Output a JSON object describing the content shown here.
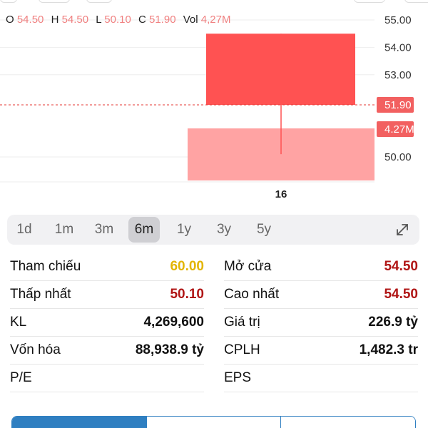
{
  "ohlc": {
    "o_label": "O",
    "o_value": "54.50",
    "h_label": "H",
    "h_value": "54.50",
    "l_label": "L",
    "l_value": "50.10",
    "c_label": "C",
    "c_value": "51.90",
    "vol_label": "Vol",
    "vol_value": "4,27M"
  },
  "chart_data": {
    "type": "candlestick",
    "categories": [
      "16"
    ],
    "candles": [
      {
        "x": "16",
        "open": 54.5,
        "high": 54.5,
        "low": 50.1,
        "close": 51.9
      }
    ],
    "volume": [
      {
        "x": "16",
        "value": 4.27
      }
    ],
    "y_ticks": [
      "55.00",
      "54.00",
      "53.00",
      "50.00"
    ],
    "ylim": [
      49.2,
      55.2
    ],
    "last_price_label": "51.90",
    "last_volume_label": "4.27M",
    "x_tick_label": "16",
    "colors": {
      "candle": "#ff5252",
      "volume": "#ffa3a3",
      "price_line": "#e53935",
      "tag": "#f26060"
    }
  },
  "periods": [
    {
      "label": "1d",
      "active": false
    },
    {
      "label": "1m",
      "active": false
    },
    {
      "label": "3m",
      "active": false
    },
    {
      "label": "6m",
      "active": true
    },
    {
      "label": "1y",
      "active": false
    },
    {
      "label": "3y",
      "active": false
    },
    {
      "label": "5y",
      "active": false
    }
  ],
  "stats": {
    "left": [
      {
        "label": "Tham chiếu",
        "value": "60.00",
        "color": "yellow"
      },
      {
        "label": "Thấp nhất",
        "value": "50.10",
        "color": "red"
      },
      {
        "label": "KL",
        "value": "4,269,600",
        "color": "dark"
      },
      {
        "label": "Vốn hóa",
        "value": "88,938.9 tỷ",
        "color": "dark"
      },
      {
        "label": "P/E",
        "value": "",
        "color": "dark"
      }
    ],
    "right": [
      {
        "label": "Mở cửa",
        "value": "54.50",
        "color": "red"
      },
      {
        "label": "Cao nhất",
        "value": "54.50",
        "color": "red"
      },
      {
        "label": "Giá trị",
        "value": "226.9 tỷ",
        "color": "dark"
      },
      {
        "label": "CPLH",
        "value": "1,482.3 tr",
        "color": "dark"
      },
      {
        "label": "EPS",
        "value": "",
        "color": "dark"
      }
    ]
  },
  "icons": {
    "expand": "expand-icon"
  }
}
